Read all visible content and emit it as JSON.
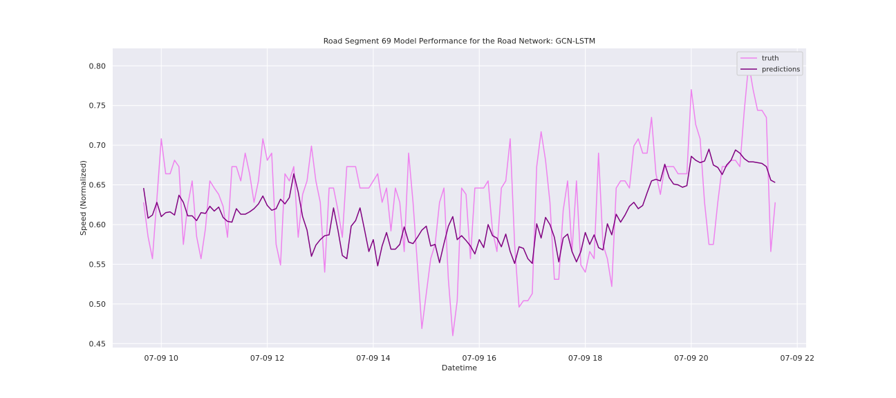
{
  "chart_data": {
    "type": "line",
    "title": "Road Segment 69 Model Performance for the Road Network: GCN-LSTM",
    "xlabel": "Datetime",
    "ylabel": "Speed (Normalized)",
    "x_start": "07-09 09:40",
    "x_step_minutes": 5,
    "xlim": [
      "07-09 09:05",
      "07-09 22:10"
    ],
    "ylim": [
      0.445,
      0.822
    ],
    "x_ticks": [
      "07-09 10",
      "07-09 12",
      "07-09 14",
      "07-09 16",
      "07-09 18",
      "07-09 20",
      "07-09 22"
    ],
    "y_ticks": [
      0.45,
      0.5,
      0.55,
      0.6,
      0.65,
      0.7,
      0.75,
      0.8
    ],
    "y_tick_labels": [
      "0.45",
      "0.50",
      "0.55",
      "0.60",
      "0.65",
      "0.70",
      "0.75",
      "0.80"
    ],
    "grid": true,
    "legend_position": "top-right",
    "series": [
      {
        "name": "truth",
        "color": "#ee82ee",
        "values": [
          0.628,
          0.585,
          0.557,
          0.632,
          0.708,
          0.664,
          0.664,
          0.681,
          0.673,
          0.575,
          0.625,
          0.655,
          0.585,
          0.557,
          0.595,
          0.655,
          0.646,
          0.638,
          0.623,
          0.584,
          0.673,
          0.673,
          0.655,
          0.69,
          0.664,
          0.628,
          0.655,
          0.708,
          0.681,
          0.69,
          0.575,
          0.549,
          0.664,
          0.655,
          0.673,
          0.584,
          0.638,
          0.655,
          0.699,
          0.655,
          0.628,
          0.54,
          0.646,
          0.646,
          0.618,
          0.584,
          0.673,
          0.673,
          0.673,
          0.646,
          0.646,
          0.646,
          0.655,
          0.664,
          0.628,
          0.646,
          0.592,
          0.646,
          0.628,
          0.566,
          0.69,
          0.628,
          0.549,
          0.469,
          0.513,
          0.557,
          0.575,
          0.628,
          0.646,
          0.531,
          0.46,
          0.504,
          0.646,
          0.638,
          0.557,
          0.646,
          0.646,
          0.646,
          0.655,
          0.592,
          0.566,
          0.646,
          0.655,
          0.708,
          0.575,
          0.496,
          0.504,
          0.504,
          0.513,
          0.673,
          0.717,
          0.681,
          0.628,
          0.531,
          0.531,
          0.618,
          0.655,
          0.566,
          0.655,
          0.549,
          0.54,
          0.566,
          0.557,
          0.69,
          0.575,
          0.557,
          0.522,
          0.646,
          0.655,
          0.655,
          0.646,
          0.699,
          0.708,
          0.69,
          0.69,
          0.735,
          0.664,
          0.638,
          0.673,
          0.673,
          0.673,
          0.664,
          0.664,
          0.664,
          0.77,
          0.726,
          0.708,
          0.628,
          0.575,
          0.575,
          0.628,
          0.673,
          0.673,
          0.681,
          0.681,
          0.673,
          0.744,
          0.803,
          0.77,
          0.744,
          0.744,
          0.735,
          0.566,
          0.628
        ]
      },
      {
        "name": "predictions",
        "color": "#800080",
        "values": [
          0.646,
          0.608,
          0.612,
          0.628,
          0.61,
          0.615,
          0.616,
          0.612,
          0.637,
          0.628,
          0.611,
          0.611,
          0.605,
          0.615,
          0.614,
          0.623,
          0.617,
          0.622,
          0.609,
          0.604,
          0.603,
          0.62,
          0.613,
          0.613,
          0.616,
          0.62,
          0.626,
          0.636,
          0.624,
          0.618,
          0.62,
          0.632,
          0.626,
          0.634,
          0.664,
          0.641,
          0.61,
          0.593,
          0.56,
          0.574,
          0.581,
          0.586,
          0.587,
          0.621,
          0.593,
          0.561,
          0.557,
          0.598,
          0.605,
          0.621,
          0.594,
          0.566,
          0.581,
          0.548,
          0.573,
          0.59,
          0.569,
          0.569,
          0.575,
          0.597,
          0.578,
          0.576,
          0.584,
          0.593,
          0.598,
          0.573,
          0.575,
          0.552,
          0.576,
          0.598,
          0.61,
          0.581,
          0.586,
          0.58,
          0.573,
          0.563,
          0.581,
          0.571,
          0.6,
          0.586,
          0.583,
          0.572,
          0.588,
          0.566,
          0.551,
          0.572,
          0.57,
          0.557,
          0.551,
          0.601,
          0.583,
          0.609,
          0.6,
          0.584,
          0.553,
          0.583,
          0.588,
          0.566,
          0.553,
          0.566,
          0.59,
          0.575,
          0.587,
          0.571,
          0.568,
          0.601,
          0.587,
          0.613,
          0.603,
          0.612,
          0.623,
          0.628,
          0.62,
          0.624,
          0.64,
          0.655,
          0.657,
          0.655,
          0.676,
          0.659,
          0.651,
          0.65,
          0.647,
          0.649,
          0.686,
          0.681,
          0.678,
          0.68,
          0.695,
          0.675,
          0.672,
          0.663,
          0.675,
          0.681,
          0.694,
          0.69,
          0.683,
          0.679,
          0.679,
          0.678,
          0.677,
          0.673,
          0.656,
          0.653
        ]
      }
    ]
  }
}
